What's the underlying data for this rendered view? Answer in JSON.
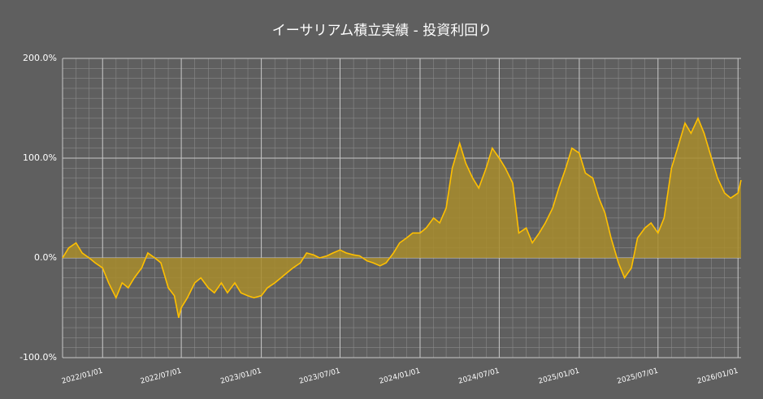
{
  "chart_data": {
    "type": "area",
    "title": "イーサリアム積立実績 - 投資利回り",
    "x": [
      "2021/10/01",
      "2021/10/15",
      "2021/11/01",
      "2021/11/15",
      "2021/12/01",
      "2021/12/15",
      "2022/01/01",
      "2022/01/15",
      "2022/02/01",
      "2022/02/15",
      "2022/03/01",
      "2022/03/15",
      "2022/04/01",
      "2022/04/15",
      "2022/05/01",
      "2022/05/15",
      "2022/06/01",
      "2022/06/15",
      "2022/06/25",
      "2022/07/01",
      "2022/07/15",
      "2022/08/01",
      "2022/08/15",
      "2022/09/01",
      "2022/09/15",
      "2022/10/01",
      "2022/10/15",
      "2022/11/01",
      "2022/11/15",
      "2022/12/01",
      "2022/12/15",
      "2023/01/01",
      "2023/01/15",
      "2023/02/01",
      "2023/02/15",
      "2023/03/01",
      "2023/03/15",
      "2023/04/01",
      "2023/04/15",
      "2023/05/01",
      "2023/05/15",
      "2023/06/01",
      "2023/06/15",
      "2023/07/01",
      "2023/07/15",
      "2023/08/01",
      "2023/08/15",
      "2023/09/01",
      "2023/09/15",
      "2023/10/01",
      "2023/10/15",
      "2023/11/01",
      "2023/11/15",
      "2023/12/01",
      "2023/12/15",
      "2024/01/01",
      "2024/01/15",
      "2024/02/01",
      "2024/02/15",
      "2024/03/01",
      "2024/03/15",
      "2024/04/01",
      "2024/04/15",
      "2024/05/01",
      "2024/05/15",
      "2024/06/01",
      "2024/06/15",
      "2024/07/01",
      "2024/07/15",
      "2024/08/01",
      "2024/08/15",
      "2024/09/01",
      "2024/09/15",
      "2024/10/01",
      "2024/10/15",
      "2024/11/01",
      "2024/11/15",
      "2024/12/01",
      "2024/12/15",
      "2025/01/01",
      "2025/01/15",
      "2025/02/01",
      "2025/02/15",
      "2025/03/01",
      "2025/03/15",
      "2025/04/01",
      "2025/04/15",
      "2025/05/01",
      "2025/05/15",
      "2025/06/01",
      "2025/06/15",
      "2025/07/01",
      "2025/07/15",
      "2025/08/01",
      "2025/08/15",
      "2025/09/01",
      "2025/09/15",
      "2025/10/01",
      "2025/10/15",
      "2025/11/01",
      "2025/11/15",
      "2025/12/01",
      "2025/12/15",
      "2026/01/01",
      "2026/01/08"
    ],
    "values": [
      0,
      10,
      15,
      5,
      0,
      -5,
      -10,
      -25,
      -40,
      -25,
      -30,
      -20,
      -10,
      5,
      0,
      -5,
      -30,
      -38,
      -60,
      -50,
      -40,
      -25,
      -20,
      -30,
      -35,
      -25,
      -35,
      -25,
      -35,
      -38,
      -40,
      -38,
      -30,
      -25,
      -20,
      -15,
      -10,
      -5,
      5,
      3,
      0,
      2,
      5,
      8,
      5,
      3,
      2,
      -3,
      -5,
      -8,
      -5,
      5,
      15,
      20,
      25,
      25,
      30,
      40,
      35,
      50,
      90,
      115,
      95,
      80,
      70,
      90,
      110,
      100,
      90,
      75,
      25,
      30,
      15,
      25,
      35,
      50,
      70,
      90,
      110,
      105,
      85,
      80,
      60,
      45,
      20,
      -5,
      -20,
      -10,
      20,
      30,
      35,
      25,
      40,
      90,
      110,
      135,
      125,
      140,
      125,
      100,
      80,
      65,
      60,
      65,
      78
    ],
    "line_color": "#ffc000",
    "fill_color": "#a88c2c",
    "xlim": [
      "2021/10/01",
      "2026/01/08"
    ],
    "xticks": [
      "2022/01/01",
      "2022/07/01",
      "2023/01/01",
      "2023/07/01",
      "2024/01/01",
      "2024/07/01",
      "2025/01/01",
      "2025/07/01",
      "2026/01/01"
    ],
    "ylim": [
      -100,
      200
    ],
    "yticks": [
      {
        "value": -100,
        "label": "-100.0%"
      },
      {
        "value": 0,
        "label": "0.0%"
      },
      {
        "value": 100,
        "label": "100.0%"
      },
      {
        "value": 200,
        "label": "200.0%"
      }
    ],
    "grid": true,
    "minor_grid": true
  }
}
